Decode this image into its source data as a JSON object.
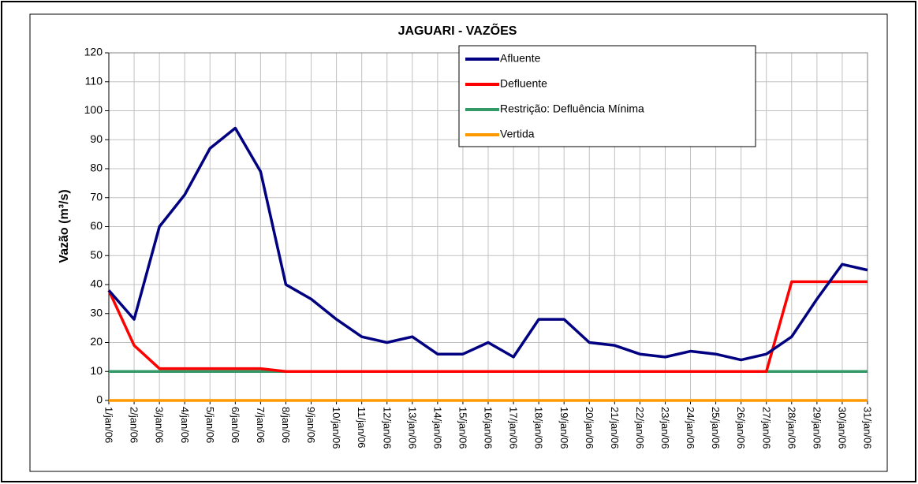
{
  "chart_data": {
    "type": "line",
    "title": "JAGUARI - VAZÕES",
    "y_label": "Vazão (m³/s)",
    "categories": [
      "1/jan/06",
      "2/jan/06",
      "3/jan/06",
      "4/jan/06",
      "5/jan/06",
      "6/jan/06",
      "7/jan/06",
      "8/jan/06",
      "9/jan/06",
      "10/jan/06",
      "11/jan/06",
      "12/jan/06",
      "13/jan/06",
      "14/jan/06",
      "15/jan/06",
      "16/jan/06",
      "17/jan/06",
      "18/jan/06",
      "19/jan/06",
      "20/jan/06",
      "21/jan/06",
      "22/jan/06",
      "23/jan/06",
      "24/jan/06",
      "25/jan/06",
      "26/jan/06",
      "27/jan/06",
      "28/jan/06",
      "29/jan/06",
      "30/jan/06",
      "31/jan/06"
    ],
    "series": [
      {
        "name": "Afluente",
        "color": "#000080",
        "values": [
          38,
          28,
          60,
          71,
          87,
          94,
          79,
          40,
          35,
          28,
          22,
          20,
          22,
          16,
          16,
          20,
          15,
          28,
          28,
          20,
          19,
          16,
          15,
          17,
          16,
          14,
          16,
          22,
          35,
          47,
          45
        ]
      },
      {
        "name": "Defluente",
        "color": "#ff0000",
        "values": [
          38,
          19,
          11,
          11,
          11,
          11,
          11,
          10,
          10,
          10,
          10,
          10,
          10,
          10,
          10,
          10,
          10,
          10,
          10,
          10,
          10,
          10,
          10,
          10,
          10,
          10,
          10,
          41,
          41,
          41,
          41
        ]
      },
      {
        "name": "Restrição: Defluência Mínima",
        "color": "#339966",
        "values": [
          10,
          10,
          10,
          10,
          10,
          10,
          10,
          10,
          10,
          10,
          10,
          10,
          10,
          10,
          10,
          10,
          10,
          10,
          10,
          10,
          10,
          10,
          10,
          10,
          10,
          10,
          10,
          10,
          10,
          10,
          10
        ]
      },
      {
        "name": "Vertida",
        "color": "#ff9900",
        "values": [
          0,
          0,
          0,
          0,
          0,
          0,
          0,
          0,
          0,
          0,
          0,
          0,
          0,
          0,
          0,
          0,
          0,
          0,
          0,
          0,
          0,
          0,
          0,
          0,
          0,
          0,
          0,
          0,
          0,
          0,
          0
        ]
      }
    ],
    "ylim": [
      0,
      120
    ],
    "yticks": [
      0,
      10,
      20,
      30,
      40,
      50,
      60,
      70,
      80,
      90,
      100,
      110,
      120
    ],
    "grid": true
  }
}
